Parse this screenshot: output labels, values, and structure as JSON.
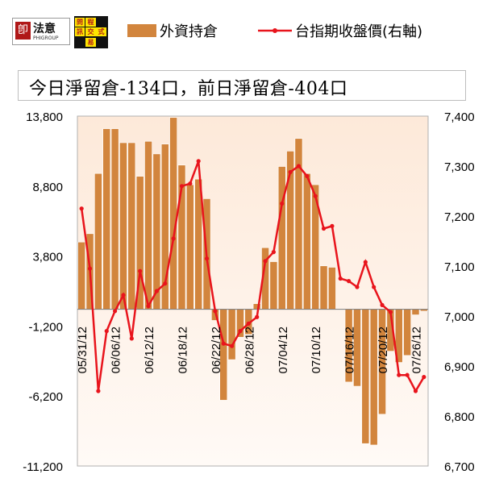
{
  "header": {
    "logo1_text": "法意",
    "logo1_mark": "卽",
    "logo1_sub": "PHIGROUP",
    "logo2_chars": [
      "程",
      "式",
      "交",
      "易",
      "問",
      "訊"
    ]
  },
  "summary_text": "今日淨留倉-134口，前日淨留倉-404口",
  "chart_data": {
    "type": "bar+line",
    "legend": [
      {
        "name": "外資持倉",
        "kind": "bar",
        "color": "#d2853d"
      },
      {
        "name": "台指期收盤價(右軸)",
        "kind": "line",
        "color": "#e8141c"
      }
    ],
    "left_axis": {
      "ticks": [
        "13,800",
        "8,800",
        "3,800",
        "-1,200",
        "-6,200",
        "-11,200"
      ],
      "ylim": [
        -11200,
        13800
      ]
    },
    "right_axis": {
      "ticks": [
        "7,400",
        "7,300",
        "7,200",
        "7,100",
        "7,000",
        "6,900",
        "6,800",
        "6,700"
      ],
      "ylim": [
        6700,
        7400
      ]
    },
    "x_tick_labels": [
      "05/31/12",
      "06/06/12",
      "06/12/12",
      "06/18/12",
      "06/22/12",
      "06/28/12",
      "07/04/12",
      "07/10/12",
      "07/16/12",
      "07/20/12",
      "07/26/12"
    ],
    "x_tick_index": [
      0,
      4,
      8,
      12,
      16,
      20,
      24,
      28,
      32,
      36,
      40
    ],
    "bars": [
      4800,
      5400,
      9700,
      12900,
      12900,
      11900,
      11900,
      9500,
      12000,
      11100,
      11800,
      13700,
      10300,
      8900,
      9300,
      7900,
      -800,
      -6500,
      -3600,
      -2000,
      -1800,
      400,
      4400,
      3400,
      10200,
      11300,
      12200,
      9700,
      8900,
      3100,
      3000,
      0,
      -5200,
      -5500,
      -9600,
      -9700,
      -7500,
      -3000,
      -3800,
      -3300,
      -400,
      -134
    ],
    "prices": [
      7215,
      7095,
      6850,
      6970,
      7010,
      7042,
      6955,
      7090,
      7020,
      7050,
      7065,
      7155,
      7260,
      7265,
      7310,
      7115,
      7010,
      6945,
      6940,
      6970,
      6985,
      6998,
      7110,
      7128,
      7225,
      7288,
      7300,
      7280,
      7240,
      7175,
      7180,
      7075,
      7070,
      7058,
      7108,
      7058,
      7022,
      7008,
      6882,
      6882,
      6850,
      6878
    ],
    "grid": false,
    "legend_position": "top"
  }
}
